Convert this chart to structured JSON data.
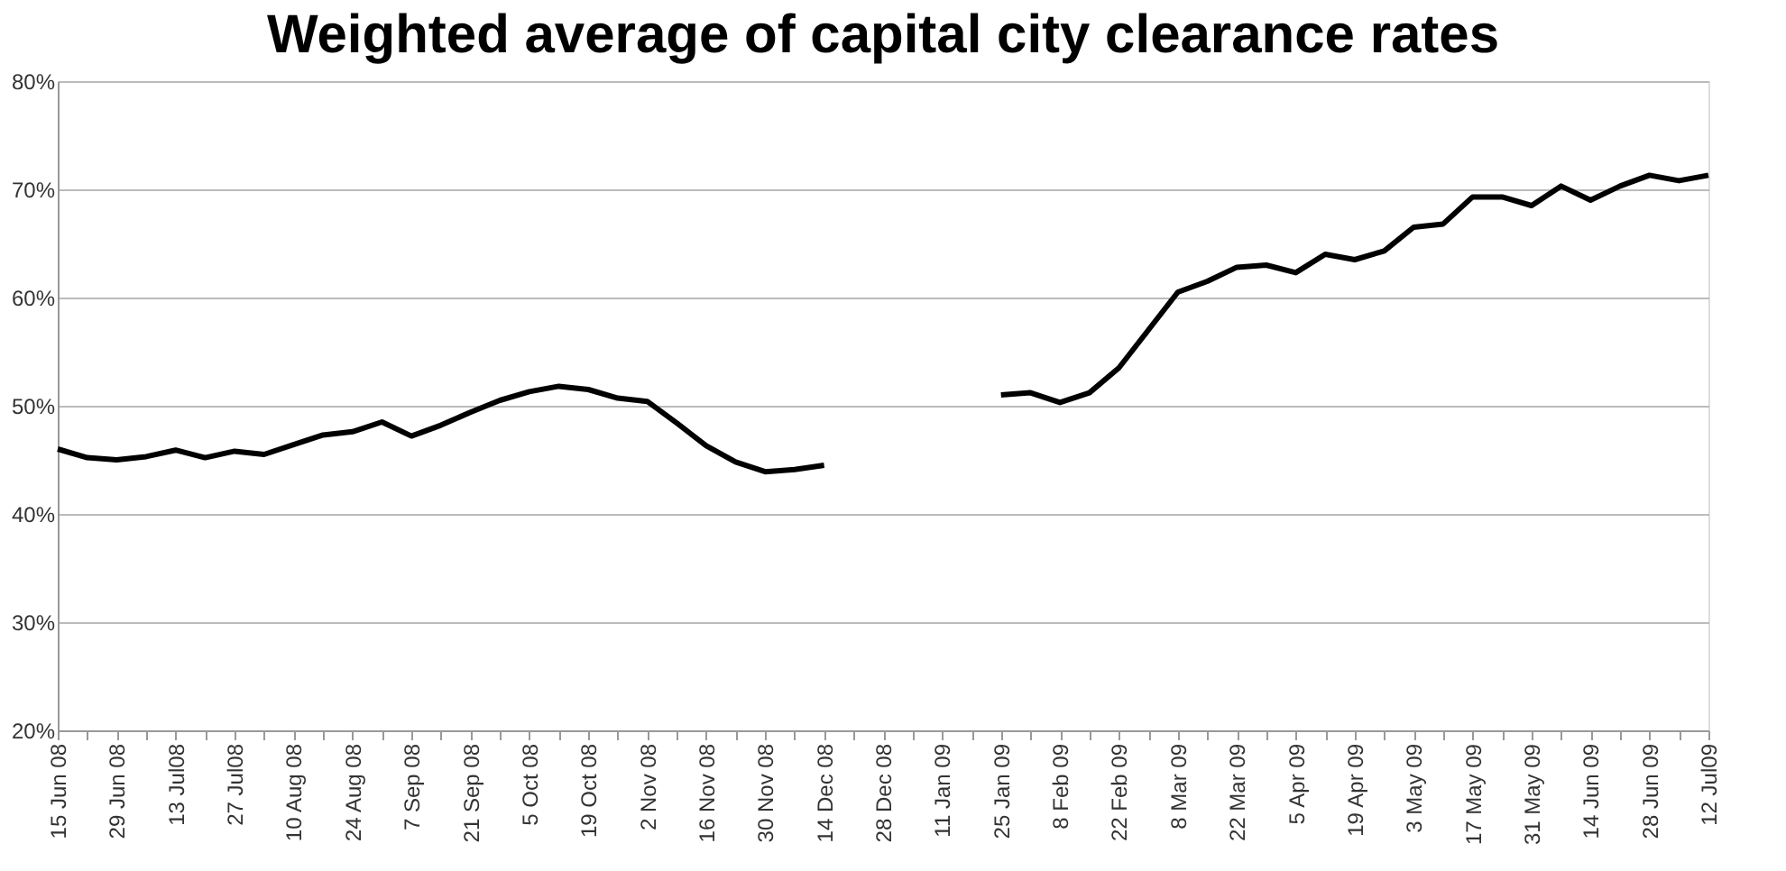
{
  "chart_data": {
    "type": "line",
    "title": "Weighted average of capital city clearance rates",
    "categories": [
      "15 Jun 08",
      null,
      "29 Jun 08",
      null,
      "13 Jul08",
      null,
      "27 Jul08",
      null,
      "10 Aug 08",
      null,
      "24 Aug 08",
      null,
      "7 Sep 08",
      null,
      "21 Sep 08",
      null,
      "5 Oct 08",
      null,
      "19 Oct 08",
      null,
      "2 Nov 08",
      null,
      "16 Nov 08",
      null,
      "30 Nov 08",
      null,
      "14 Dec 08",
      null,
      "28 Dec 08",
      null,
      "11 Jan 09",
      null,
      "25 Jan 09",
      null,
      "8 Feb 09",
      null,
      "22 Feb 09",
      null,
      "8 Mar 09",
      null,
      "22 Mar 09",
      null,
      "5 Apr 09",
      null,
      "19 Apr 09",
      null,
      "3 May 09",
      null,
      "17 May 09",
      null,
      "31 May 09",
      null,
      "14 Jun 09",
      null,
      "28 Jun 09",
      null,
      "12 Jul09"
    ],
    "series": [
      {
        "color": "#000000",
        "values": [
          46,
          45.2,
          45,
          45.3,
          45.9,
          45.2,
          45.8,
          45.5,
          46.4,
          47.3,
          47.6,
          48.5,
          47.2,
          48.2,
          49.4,
          50.5,
          51.3,
          51.8,
          51.5,
          50.7,
          50.4,
          48.4,
          46.3,
          44.8,
          43.9,
          44.1,
          44.5,
          null,
          null,
          null,
          null,
          null,
          51,
          51.2,
          50.3,
          51.2,
          53.5,
          57,
          60.5,
          61.5,
          62.8,
          63,
          62.3,
          64,
          63.5,
          64.3,
          66.5,
          66.8,
          69.3,
          69.3,
          68.5,
          70.3,
          69,
          70.3,
          71.3,
          70.8,
          71.3
        ]
      }
    ],
    "ylim": [
      20,
      80
    ],
    "yticks": [
      {
        "value": 20,
        "label": "20%"
      },
      {
        "value": 30,
        "label": "30%"
      },
      {
        "value": 40,
        "label": "40%"
      },
      {
        "value": 50,
        "label": "50%"
      },
      {
        "value": 60,
        "label": "60%"
      },
      {
        "value": 70,
        "label": "70%"
      },
      {
        "value": 80,
        "label": "80%"
      }
    ],
    "grid": "y",
    "legend": false,
    "marker": "none",
    "line_style": "solid"
  }
}
